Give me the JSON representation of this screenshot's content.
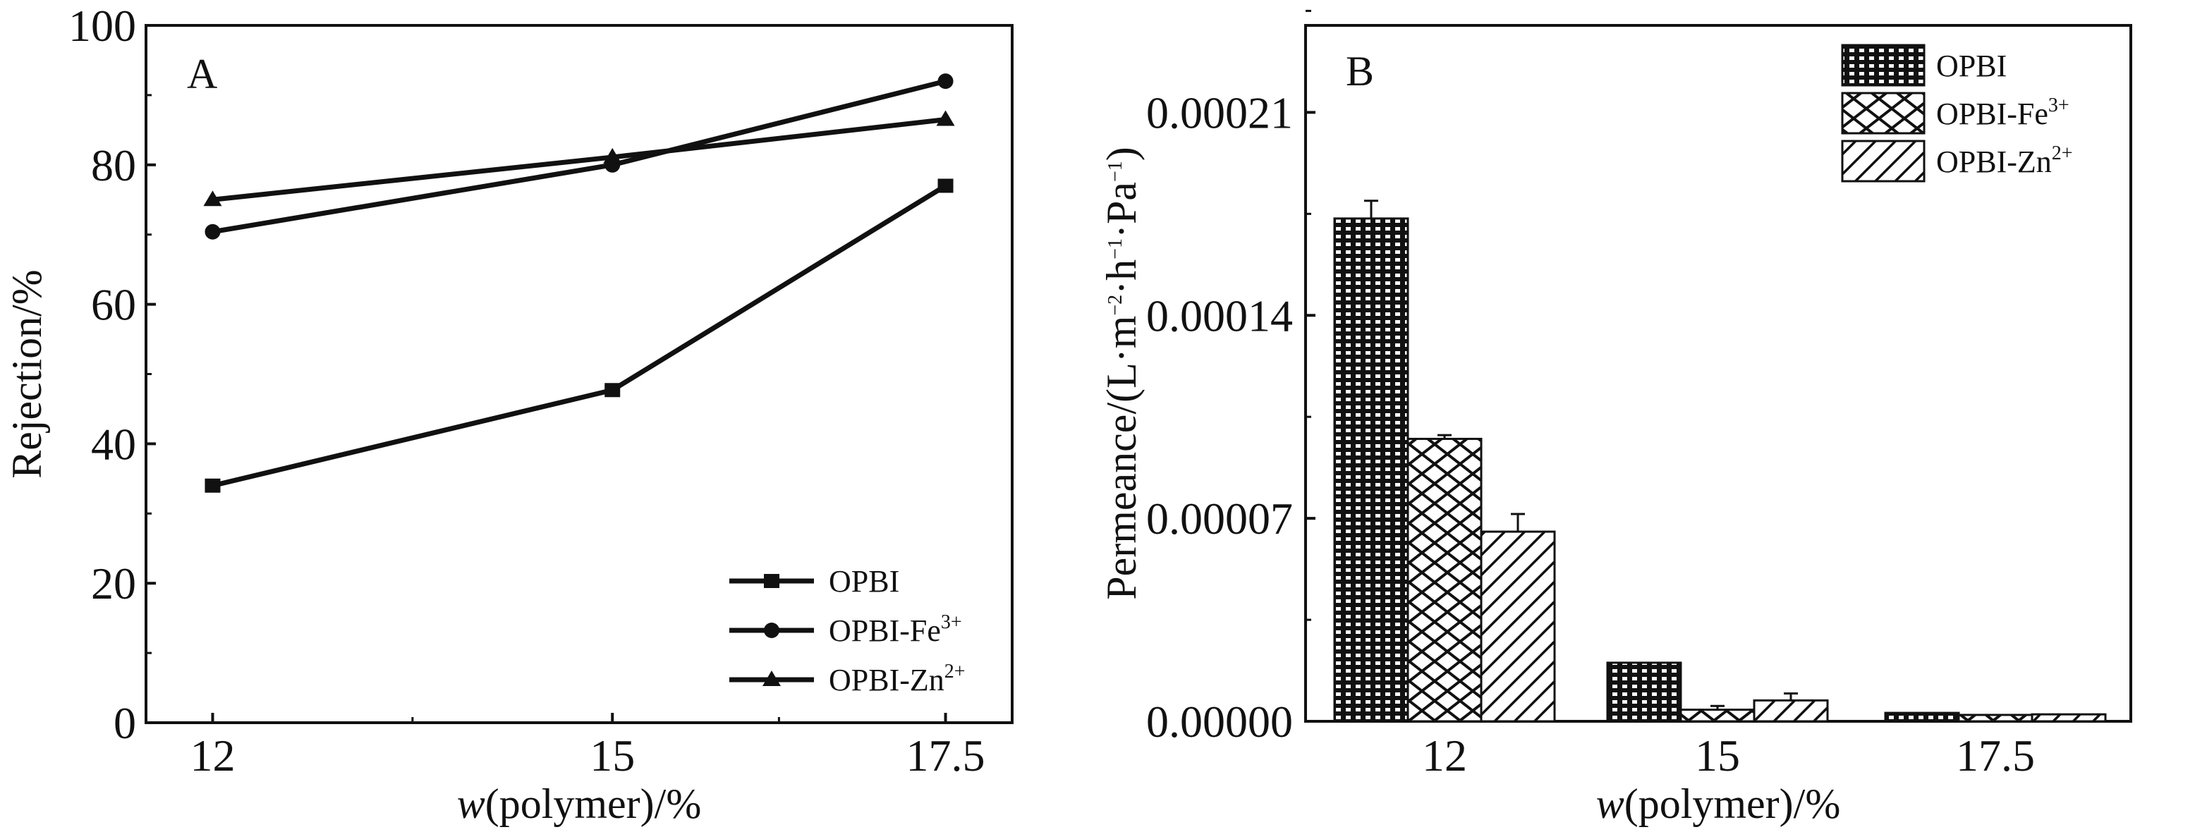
{
  "chart_data": [
    {
      "panel": "A",
      "type": "line",
      "title": "A",
      "xlabel_italic": "w",
      "xlabel_rest": "(polymer)/%",
      "ylabel": "Rejection/%",
      "x": [
        12,
        15,
        17.5
      ],
      "xticks": [
        "12",
        "15",
        "17.5"
      ],
      "xlim": [
        11.5,
        18.0
      ],
      "ylim": [
        0,
        100
      ],
      "yticks": [
        "0",
        "20",
        "40",
        "60",
        "80",
        "100"
      ],
      "legend_position": "bottom-right",
      "series": [
        {
          "name": "OPBI",
          "name_base": "OPBI",
          "name_sup": "",
          "marker": "square",
          "values": [
            34,
            47.7,
            77
          ]
        },
        {
          "name": "OPBI-Fe3+",
          "name_base": "OPBI-Fe",
          "name_sup": "3+",
          "marker": "circle",
          "values": [
            70.4,
            80,
            92
          ]
        },
        {
          "name": "OPBI-Zn2+",
          "name_base": "OPBI-Zn",
          "name_sup": "2+",
          "marker": "triangle",
          "values": [
            75,
            81.1,
            86.5
          ]
        }
      ]
    },
    {
      "panel": "B",
      "type": "bar",
      "title": "B",
      "xlabel_italic": "w",
      "xlabel_rest": "(polymer)/%",
      "ylabel_base": "Permeance/(L·m",
      "ylabel_parts": [
        "Permeance/(L·m",
        "−2",
        "·h",
        "−1",
        "·Pa",
        "−1",
        ")"
      ],
      "categories": [
        "12",
        "15",
        "17.5"
      ],
      "ylim": [
        0,
        0.00024
      ],
      "yticks": [
        "0.00000",
        "0.00007",
        "0.00014",
        "0.00021"
      ],
      "ytick_values": [
        0,
        7e-05,
        0.00014,
        0.00021
      ],
      "legend_position": "top-right",
      "series": [
        {
          "name": "OPBI",
          "name_base": "OPBI",
          "name_sup": "",
          "pattern": "grid",
          "values": [
            0.0001734,
            2.02e-05,
            2.9e-06
          ],
          "error": [
            6.1e-06,
            0,
            0
          ]
        },
        {
          "name": "OPBI-Fe3+",
          "name_base": "OPBI-Fe",
          "name_sup": "3+",
          "pattern": "crosshatch",
          "values": [
            9.74e-05,
            4e-06,
            2.2e-06
          ],
          "error": [
            1.3e-06,
            1.3e-06,
            0
          ]
        },
        {
          "name": "OPBI-Zn2+",
          "name_base": "OPBI-Zn",
          "name_sup": "2+",
          "pattern": "diagonal",
          "values": [
            6.54e-05,
            7.2e-06,
            2.4e-06
          ],
          "error": [
            6.1e-06,
            2.4e-06,
            0
          ]
        }
      ]
    }
  ]
}
